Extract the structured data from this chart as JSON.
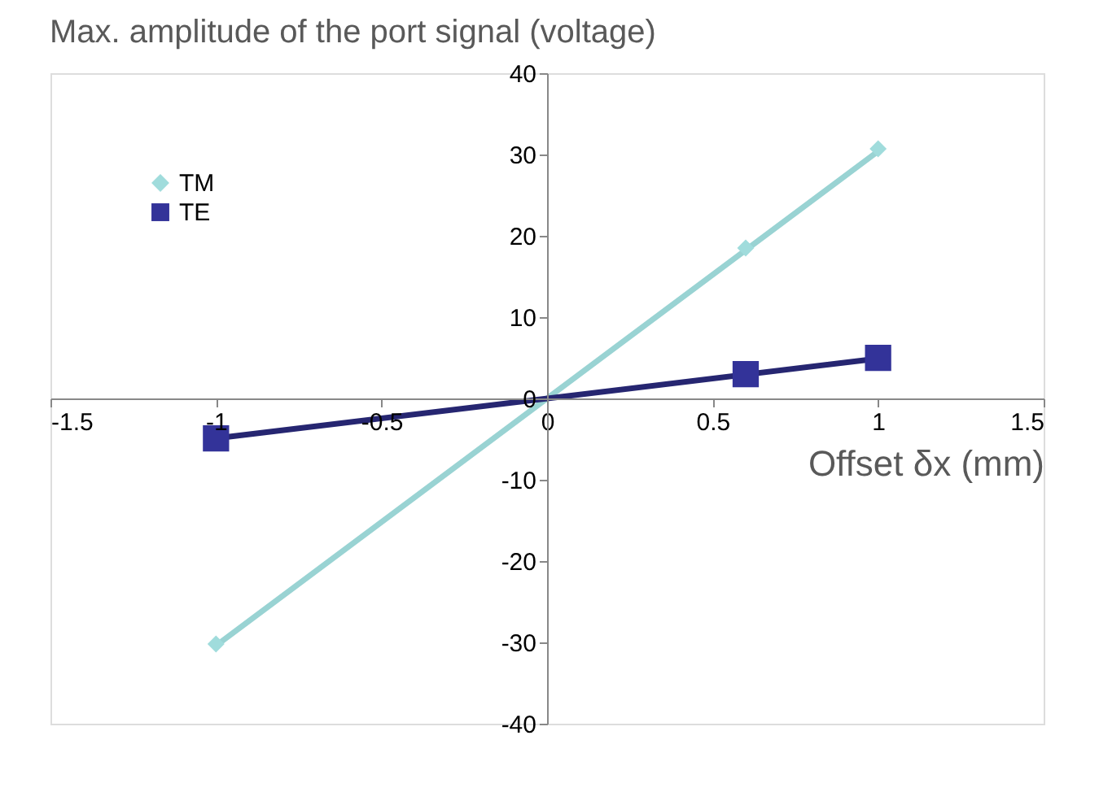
{
  "chart_data": {
    "type": "scatter",
    "title": "Max. amplitude of the port signal (voltage)",
    "xlabel": "Offset δx (mm)",
    "xlim": [
      -1.5,
      1.5
    ],
    "xticks": [
      -1.5,
      -1,
      -0.5,
      0,
      0.5,
      1,
      1.5
    ],
    "ylim": [
      -40,
      40
    ],
    "yticks": [
      -40,
      -30,
      -20,
      -10,
      0,
      10,
      20,
      30,
      40
    ],
    "grid": false,
    "legend": "top left",
    "series": [
      {
        "name": "TM",
        "type": "scatter",
        "marker": "diamond",
        "color": "#a0dcdc",
        "x": [
          -1,
          0.6,
          1
        ],
        "values": [
          -30.2,
          18.5,
          30.7
        ]
      },
      {
        "name": "TE",
        "type": "scatter",
        "marker": "square",
        "color": "#333399",
        "x": [
          -1,
          0.6,
          1
        ],
        "values": [
          -4.9,
          3,
          5
        ]
      },
      {
        "type": "line",
        "color": "#99d3d3",
        "x": [
          -1,
          1
        ],
        "values": [
          -30.4,
          30.4
        ]
      },
      {
        "type": "line",
        "color": "#262671",
        "x": [
          -1,
          1
        ],
        "values": [
          -4.9,
          4.9
        ]
      }
    ]
  }
}
